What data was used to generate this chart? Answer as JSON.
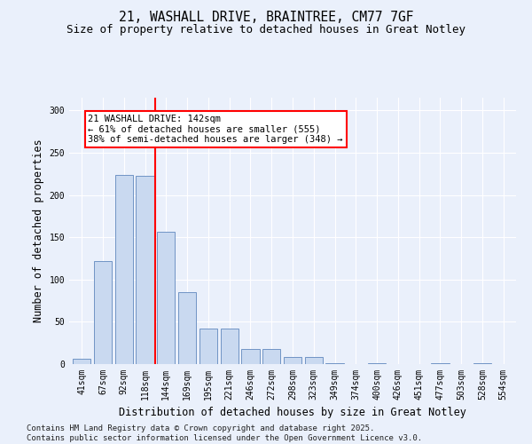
{
  "title_line1": "21, WASHALL DRIVE, BRAINTREE, CM77 7GF",
  "title_line2": "Size of property relative to detached houses in Great Notley",
  "xlabel": "Distribution of detached houses by size in Great Notley",
  "ylabel": "Number of detached properties",
  "annotation_line1": "21 WASHALL DRIVE: 142sqm",
  "annotation_line2": "← 61% of detached houses are smaller (555)",
  "annotation_line3": "38% of semi-detached houses are larger (348) →",
  "bar_color": "#c9d9f0",
  "bar_edge_color": "#7094c5",
  "vline_color": "red",
  "vline_x": 3.5,
  "categories": [
    "41sqm",
    "67sqm",
    "92sqm",
    "118sqm",
    "144sqm",
    "169sqm",
    "195sqm",
    "221sqm",
    "246sqm",
    "272sqm",
    "298sqm",
    "323sqm",
    "349sqm",
    "374sqm",
    "400sqm",
    "426sqm",
    "451sqm",
    "477sqm",
    "503sqm",
    "528sqm",
    "554sqm"
  ],
  "values": [
    6,
    122,
    224,
    223,
    156,
    85,
    42,
    42,
    18,
    18,
    8,
    8,
    1,
    0,
    1,
    0,
    0,
    1,
    0,
    1,
    0
  ],
  "ylim": [
    0,
    315
  ],
  "yticks": [
    0,
    50,
    100,
    150,
    200,
    250,
    300
  ],
  "background_color": "#eaf0fb",
  "plot_bg_color": "#eaf0fb",
  "footer_line1": "Contains HM Land Registry data © Crown copyright and database right 2025.",
  "footer_line2": "Contains public sector information licensed under the Open Government Licence v3.0.",
  "title_fontsize": 10.5,
  "subtitle_fontsize": 9,
  "axis_label_fontsize": 8.5,
  "tick_fontsize": 7,
  "footer_fontsize": 6.5,
  "annot_fontsize": 7.5
}
